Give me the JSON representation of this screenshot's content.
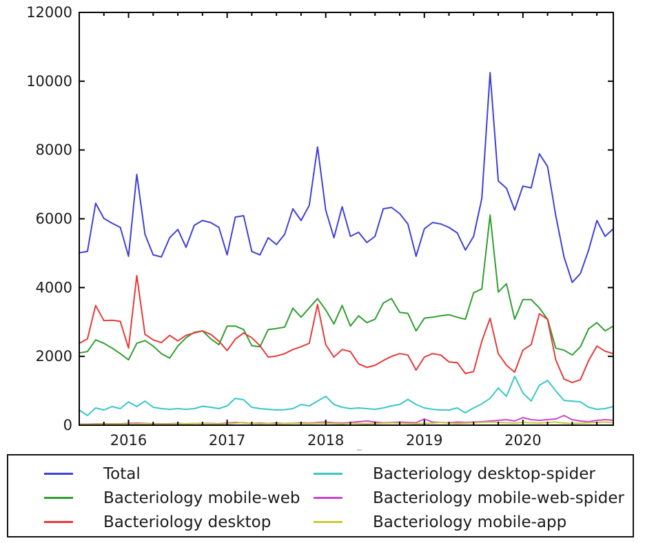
{
  "figure": {
    "background": "#ffffff",
    "frame_color": "#000000"
  },
  "axes": {
    "y_tick_labels": [
      "0",
      "2000",
      "4000",
      "6000",
      "8000",
      "10000",
      "12000"
    ],
    "x_tick_labels": [
      "2016",
      "2017",
      "2018",
      "2019",
      "2020"
    ]
  },
  "chart_data": {
    "type": "line",
    "title": "",
    "xlabel": "",
    "ylabel": "",
    "ylim": [
      0,
      12000
    ],
    "y_ticks": [
      0,
      2000,
      4000,
      6000,
      8000,
      10000,
      12000
    ],
    "x_year_labels": [
      "2016",
      "2017",
      "2018",
      "2019",
      "2020"
    ],
    "grid": false,
    "legend_position": "bottom",
    "months": [
      "2015-07",
      "2015-08",
      "2015-09",
      "2015-10",
      "2015-11",
      "2015-12",
      "2016-01",
      "2016-02",
      "2016-03",
      "2016-04",
      "2016-05",
      "2016-06",
      "2016-07",
      "2016-08",
      "2016-09",
      "2016-10",
      "2016-11",
      "2016-12",
      "2017-01",
      "2017-02",
      "2017-03",
      "2017-04",
      "2017-05",
      "2017-06",
      "2017-07",
      "2017-08",
      "2017-09",
      "2017-10",
      "2017-11",
      "2017-12",
      "2018-01",
      "2018-02",
      "2018-03",
      "2018-04",
      "2018-05",
      "2018-06",
      "2018-07",
      "2018-08",
      "2018-09",
      "2018-10",
      "2018-11",
      "2018-12",
      "2019-01",
      "2019-02",
      "2019-03",
      "2019-04",
      "2019-05",
      "2019-06",
      "2019-07",
      "2019-08",
      "2019-09",
      "2019-10",
      "2019-11",
      "2019-12",
      "2020-01",
      "2020-02",
      "2020-03",
      "2020-04",
      "2020-05",
      "2020-06",
      "2020-07",
      "2020-08",
      "2020-09",
      "2020-10",
      "2020-11",
      "2020-12"
    ],
    "series": [
      {
        "name": "Total",
        "color": "#3f3fd9",
        "values": [
          5010,
          5050,
          6450,
          6010,
          5870,
          5750,
          4910,
          7290,
          5550,
          4950,
          4890,
          5450,
          5690,
          5170,
          5810,
          5950,
          5890,
          5750,
          4950,
          6050,
          6090,
          5050,
          4950,
          5450,
          5250,
          5550,
          6290,
          5950,
          6390,
          8090,
          6250,
          5450,
          6350,
          5490,
          5610,
          5310,
          5490,
          6290,
          6330,
          6150,
          5850,
          4910,
          5710,
          5890,
          5850,
          5750,
          5590,
          5090,
          5490,
          6590,
          10250,
          7100,
          6890,
          6250,
          6950,
          6900,
          7890,
          7520,
          6090,
          4890,
          4150,
          4410,
          5090,
          5950,
          5490,
          5710
        ]
      },
      {
        "name": "Bacteriology mobile-web",
        "color": "#2f9e2f",
        "values": [
          2100,
          2140,
          2480,
          2380,
          2240,
          2080,
          1900,
          2380,
          2460,
          2300,
          2080,
          1950,
          2300,
          2540,
          2700,
          2740,
          2510,
          2340,
          2880,
          2880,
          2780,
          2310,
          2280,
          2780,
          2810,
          2850,
          3400,
          3140,
          3410,
          3680,
          3350,
          2940,
          3480,
          2880,
          3180,
          2980,
          3080,
          3550,
          3680,
          3280,
          3250,
          2740,
          3110,
          3140,
          3180,
          3210,
          3140,
          3080,
          3850,
          3960,
          6110,
          3870,
          4110,
          3080,
          3650,
          3650,
          3410,
          3080,
          2240,
          2180,
          2040,
          2280,
          2800,
          2980,
          2740,
          2880
        ]
      },
      {
        "name": "Bacteriology desktop",
        "color": "#e63939",
        "values": [
          2380,
          2510,
          3480,
          3040,
          3050,
          3020,
          2240,
          4350,
          2640,
          2480,
          2400,
          2610,
          2450,
          2610,
          2680,
          2740,
          2640,
          2440,
          2170,
          2500,
          2680,
          2540,
          2310,
          1980,
          2010,
          2080,
          2200,
          2280,
          2380,
          3510,
          2340,
          1980,
          2200,
          2140,
          1780,
          1680,
          1740,
          1880,
          2000,
          2080,
          2040,
          1600,
          1980,
          2080,
          2040,
          1840,
          1820,
          1500,
          1560,
          2440,
          3110,
          2080,
          1740,
          1540,
          2180,
          2340,
          3240,
          3080,
          1900,
          1340,
          1240,
          1320,
          1880,
          2300,
          2150,
          2080
        ]
      },
      {
        "name": "Bacteriology desktop-spider",
        "color": "#38c6c6",
        "values": [
          440,
          280,
          500,
          440,
          540,
          480,
          680,
          540,
          700,
          520,
          480,
          460,
          480,
          460,
          480,
          550,
          520,
          480,
          560,
          780,
          740,
          520,
          480,
          460,
          440,
          450,
          480,
          600,
          560,
          700,
          840,
          600,
          520,
          480,
          500,
          480,
          460,
          500,
          560,
          600,
          750,
          600,
          500,
          460,
          440,
          440,
          500,
          360,
          500,
          620,
          780,
          1080,
          840,
          1420,
          940,
          700,
          1160,
          1300,
          1000,
          720,
          700,
          680,
          520,
          460,
          480,
          540
        ]
      },
      {
        "name": "Bacteriology mobile-web-spider",
        "color": "#cc44cc",
        "values": [
          30,
          30,
          40,
          40,
          40,
          40,
          50,
          60,
          50,
          40,
          40,
          40,
          50,
          40,
          50,
          50,
          50,
          40,
          60,
          80,
          70,
          50,
          60,
          50,
          60,
          50,
          60,
          70,
          60,
          80,
          90,
          70,
          60,
          80,
          100,
          120,
          90,
          70,
          80,
          90,
          80,
          70,
          180,
          90,
          80,
          70,
          90,
          80,
          90,
          100,
          120,
          140,
          160,
          120,
          220,
          160,
          140,
          160,
          180,
          280,
          160,
          120,
          100,
          140,
          160,
          140
        ]
      },
      {
        "name": "Bacteriology mobile-app",
        "color": "#c9c93a",
        "values": [
          20,
          20,
          30,
          30,
          30,
          30,
          30,
          40,
          40,
          30,
          30,
          30,
          40,
          40,
          50,
          40,
          40,
          30,
          40,
          60,
          80,
          50,
          40,
          50,
          40,
          50,
          60,
          50,
          50,
          60,
          60,
          50,
          40,
          60,
          50,
          40,
          50,
          60,
          70,
          60,
          50,
          40,
          50,
          60,
          80,
          60,
          50,
          60,
          70,
          80,
          90,
          80,
          70,
          60,
          80,
          70,
          60,
          80,
          90,
          60,
          50,
          60,
          70,
          80,
          90,
          70
        ]
      }
    ]
  }
}
